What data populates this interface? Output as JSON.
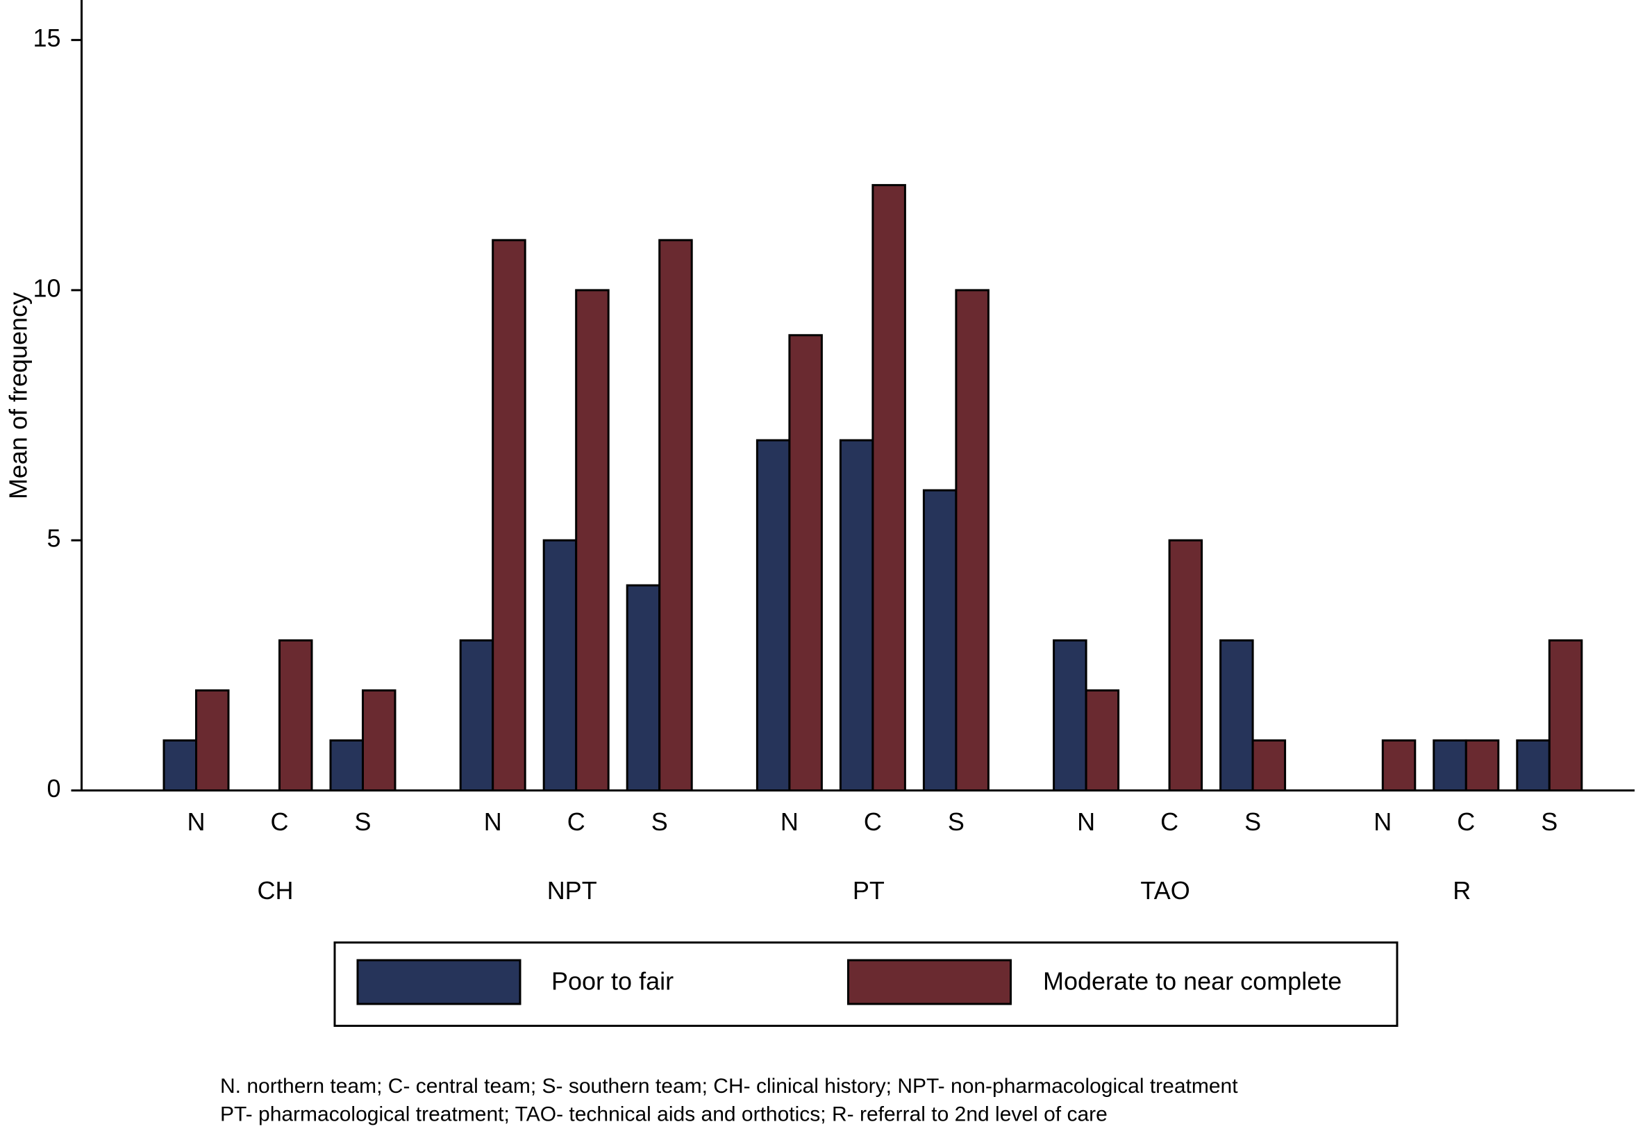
{
  "chart_data": {
    "type": "bar",
    "y_label": "Mean of frequency",
    "categories": [
      "N",
      "C",
      "S",
      "N",
      "C",
      "S",
      "N",
      "C",
      "S",
      "N",
      "C",
      "S",
      "N",
      "C",
      "S"
    ],
    "groups": [
      "CH",
      "NPT",
      "PT",
      "TAO",
      "R"
    ],
    "series": [
      {
        "name": "Poor to fair",
        "color": "#26345a",
        "values": [
          1,
          0,
          1,
          3,
          5,
          4.1,
          7,
          7,
          6,
          3,
          0,
          3,
          0,
          1,
          1
        ]
      },
      {
        "name": "Moderate to near complete",
        "color": "#6a2a30",
        "values": [
          2,
          3,
          2,
          11,
          10,
          11,
          9.1,
          12.1,
          10,
          2,
          5,
          1,
          1,
          1,
          3
        ]
      }
    ],
    "ylim": [
      0,
      15.8
    ],
    "yticks": [
      0,
      5,
      10,
      15
    ],
    "notes": [
      "N. northern team; C- central team; S- southern team; CH- clinical history; NPT- non-pharmacological treatment",
      "PT- pharmacological treatment; TAO- technical aids and orthotics; R- referral to 2nd level of care"
    ]
  }
}
